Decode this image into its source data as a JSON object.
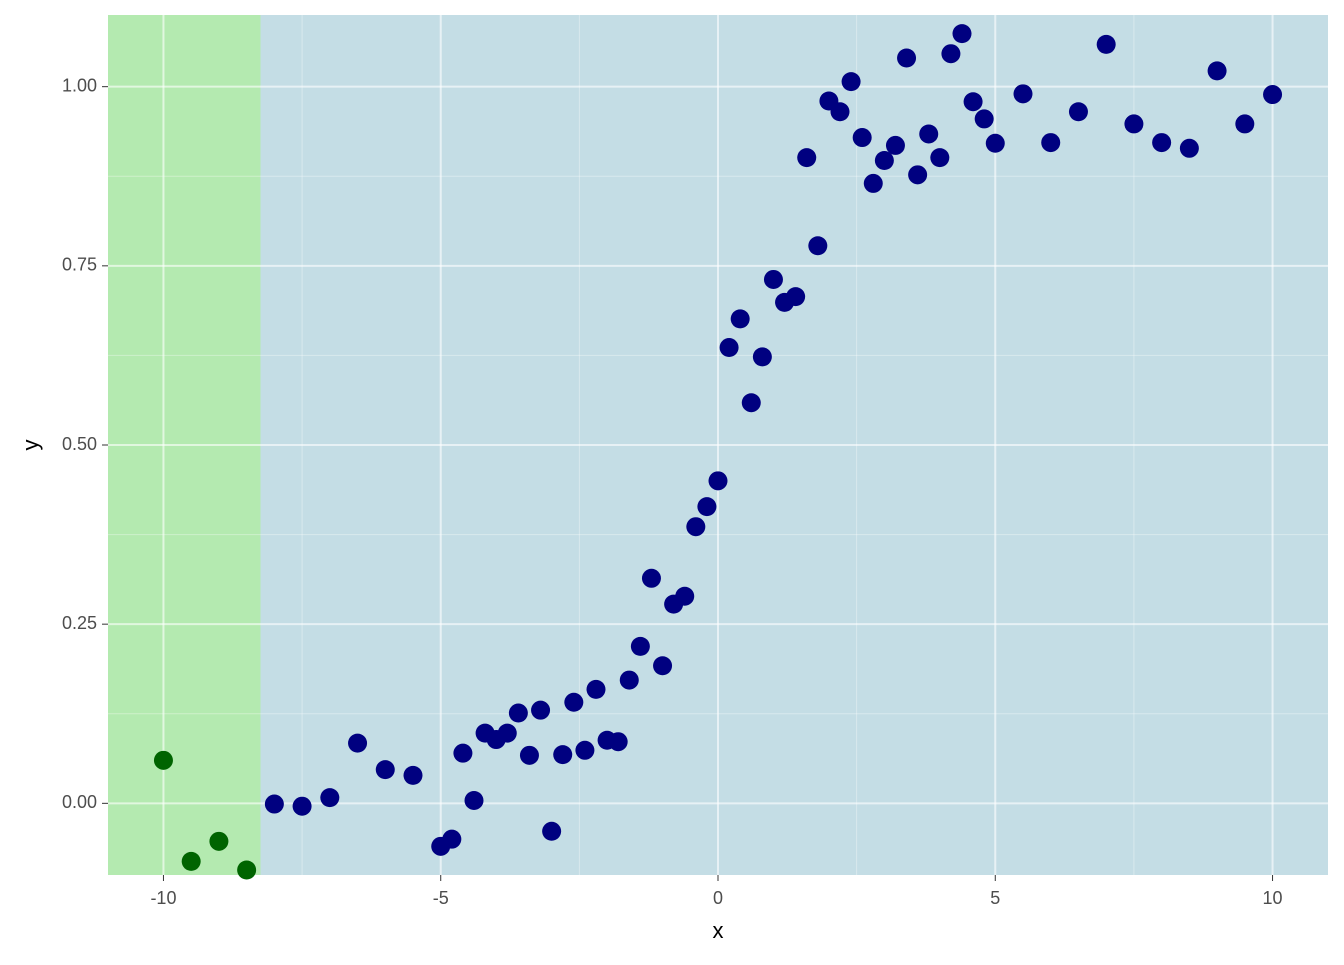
{
  "chart_data": {
    "type": "scatter",
    "xlabel": "x",
    "ylabel": "y",
    "xlim": [
      -11,
      11
    ],
    "ylim": [
      -0.1,
      1.1
    ],
    "xticks": [
      -10,
      -5,
      0,
      5,
      10
    ],
    "yticks": [
      {
        "value": 0,
        "label": "0.00"
      },
      {
        "value": 0.25,
        "label": "0.25"
      },
      {
        "value": 0.5,
        "label": "0.50"
      },
      {
        "value": 0.75,
        "label": "0.75"
      },
      {
        "value": 1,
        "label": "1.00"
      }
    ],
    "grid": true,
    "regions": [
      {
        "xlim": [
          -11,
          -8.25
        ],
        "color": "#b4eab0"
      },
      {
        "xlim": [
          -8.25,
          11
        ],
        "color": "#c4dde5"
      }
    ],
    "series": [
      {
        "color": "#006400",
        "x": [
          -10,
          -9.5,
          -9,
          -8.5
        ],
        "values": [
          0.06,
          -0.081,
          -0.053,
          -0.093
        ]
      },
      {
        "color": "#000080",
        "x": [
          -8,
          -7.5,
          -7,
          -6.5,
          -6,
          -5.5,
          -5,
          -4.8,
          -4.6,
          -4.4,
          -4.2,
          -4.0,
          -3.8,
          -3.6,
          -3.4,
          -3.2,
          -3.0,
          -2.8,
          -2.6,
          -2.4,
          -2.2,
          -2.0,
          -1.8,
          -1.6,
          -1.4,
          -1.2,
          -1.0,
          -0.8,
          -0.6,
          -0.4,
          -0.2,
          0,
          0.2,
          0.4,
          0.6,
          0.8,
          1.0,
          1.2,
          1.4,
          1.6,
          1.8,
          2.0,
          2.2,
          2.4,
          2.6,
          2.8,
          3.0,
          3.2,
          3.4,
          3.6,
          3.8,
          4.0,
          4.2,
          4.4,
          4.6,
          4.8,
          5.0,
          5.5,
          6,
          6.5,
          7,
          7.5,
          8,
          8.5,
          9,
          9.5,
          10
        ],
        "values": [
          -0.001,
          -0.004,
          0.008,
          0.084,
          0.047,
          0.039,
          -0.06,
          -0.05,
          0.07,
          0.004,
          0.098,
          0.089,
          0.098,
          0.126,
          0.067,
          0.13,
          -0.039,
          0.068,
          0.141,
          0.074,
          0.159,
          0.088,
          0.086,
          0.172,
          0.219,
          0.314,
          0.192,
          0.278,
          0.289,
          0.386,
          0.414,
          0.45,
          0.636,
          0.676,
          0.559,
          0.623,
          0.731,
          0.699,
          0.707,
          0.901,
          0.778,
          0.98,
          0.965,
          1.007,
          0.929,
          0.865,
          0.897,
          0.918,
          1.04,
          0.877,
          0.934,
          0.901,
          1.046,
          1.074,
          0.979,
          0.955,
          0.921,
          0.99,
          0.922,
          0.965,
          1.059,
          0.948,
          0.922,
          0.914,
          1.022,
          0.948,
          0.989
        ]
      }
    ]
  }
}
